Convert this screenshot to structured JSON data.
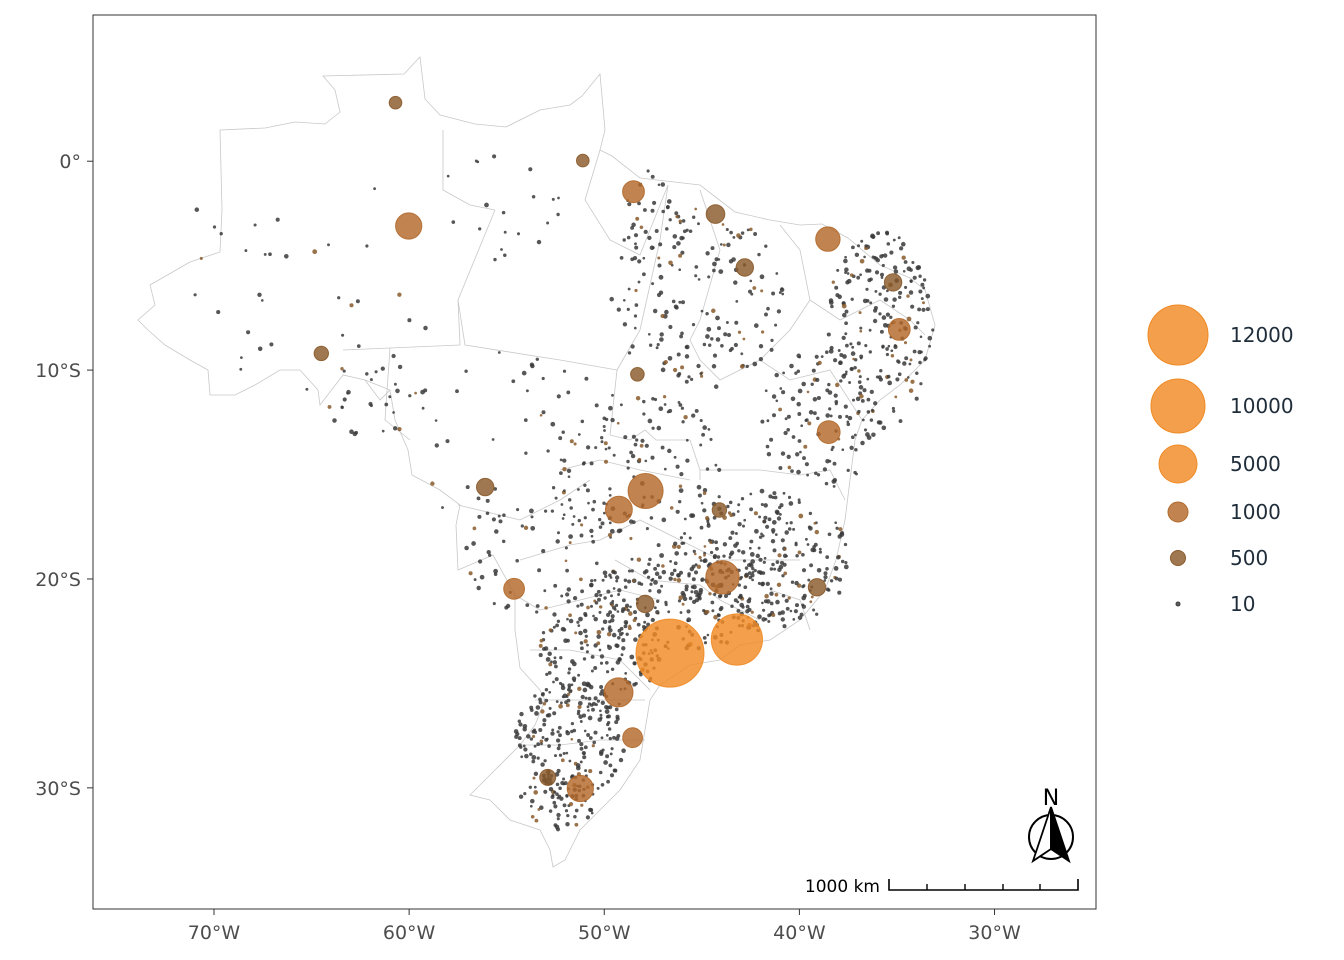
{
  "chart_data": {
    "type": "scatter",
    "title": "",
    "xlabel": "",
    "ylabel": "",
    "xlim": [
      -76.2,
      -24.8
    ],
    "ylim": [
      -35.8,
      7.0
    ],
    "x_ticks": [
      {
        "value": -70,
        "label": "70°W"
      },
      {
        "value": -60,
        "label": "60°W"
      },
      {
        "value": -50,
        "label": "50°W"
      },
      {
        "value": -40,
        "label": "40°W"
      },
      {
        "value": -30,
        "label": "30°W"
      }
    ],
    "y_ticks": [
      {
        "value": 0,
        "label": "0°"
      },
      {
        "value": -10,
        "label": "10°S"
      },
      {
        "value": -20,
        "label": "20°S"
      },
      {
        "value": -30,
        "label": "30°S"
      }
    ],
    "grid": false,
    "legend_placement": "right",
    "legend": [
      {
        "value": 12000,
        "label": "12000"
      },
      {
        "value": 10000,
        "label": "10000"
      },
      {
        "value": 5000,
        "label": "5000"
      },
      {
        "value": 1000,
        "label": "1000"
      },
      {
        "value": 500,
        "label": "500"
      },
      {
        "value": 10,
        "label": "10"
      }
    ],
    "colors": {
      "small": "#3a3a3a",
      "mid": "#8a5a2b",
      "large": "#f08a24"
    },
    "points": [
      {
        "lon": -46.63,
        "lat": -23.55,
        "value": 12000
      },
      {
        "lon": -43.2,
        "lat": -22.9,
        "value": 6500
      },
      {
        "lon": -43.94,
        "lat": -19.92,
        "value": 2500
      },
      {
        "lon": -47.88,
        "lat": -15.79,
        "value": 2800
      },
      {
        "lon": -49.27,
        "lat": -25.43,
        "value": 1800
      },
      {
        "lon": -49.25,
        "lat": -16.68,
        "value": 1500
      },
      {
        "lon": -51.23,
        "lat": -30.03,
        "value": 1400
      },
      {
        "lon": -60.02,
        "lat": -3.1,
        "value": 1400
      },
      {
        "lon": -38.54,
        "lat": -3.73,
        "value": 1200
      },
      {
        "lon": -38.5,
        "lat": -12.97,
        "value": 1000
      },
      {
        "lon": -48.5,
        "lat": -1.46,
        "value": 900
      },
      {
        "lon": -34.88,
        "lat": -8.05,
        "value": 900
      },
      {
        "lon": -54.62,
        "lat": -20.47,
        "value": 800
      },
      {
        "lon": -48.55,
        "lat": -27.6,
        "value": 700
      },
      {
        "lon": -44.3,
        "lat": -2.53,
        "value": 600
      },
      {
        "lon": -39.1,
        "lat": -20.4,
        "value": 500
      },
      {
        "lon": -42.8,
        "lat": -5.09,
        "value": 500
      },
      {
        "lon": -35.2,
        "lat": -5.8,
        "value": 500
      },
      {
        "lon": -64.5,
        "lat": -9.2,
        "value": 300
      },
      {
        "lon": -56.1,
        "lat": -15.6,
        "value": 500
      },
      {
        "lon": -48.3,
        "lat": -10.2,
        "value": 250
      },
      {
        "lon": -60.7,
        "lat": 2.8,
        "value": 200
      },
      {
        "lon": -51.1,
        "lat": 0.03,
        "value": 200
      },
      {
        "lon": -44.1,
        "lat": -16.7,
        "value": 300
      },
      {
        "lon": -47.9,
        "lat": -21.2,
        "value": 500
      },
      {
        "lon": -52.9,
        "lat": -29.5,
        "value": 400
      }
    ]
  }
}
